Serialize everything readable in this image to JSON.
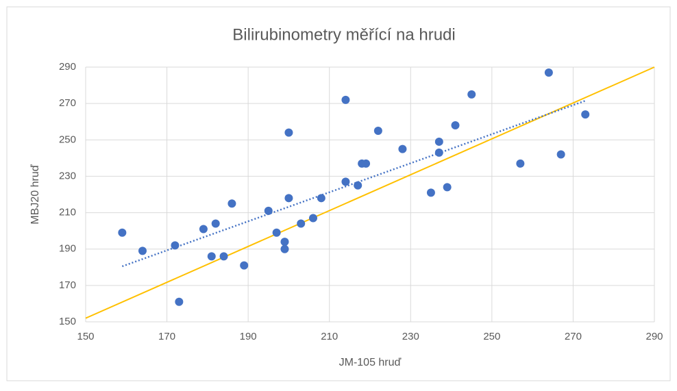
{
  "chart_data": {
    "type": "scatter",
    "title": "Bilirubinometry měřící na hrudi",
    "x_label": "JM-105 hruď",
    "y_label": "MBJ20 hruď",
    "series": [
      {
        "color": "#4472c4",
        "x": [
          159,
          164,
          172,
          173,
          179,
          182,
          181,
          184,
          186,
          189,
          195,
          197,
          199,
          199,
          200,
          200,
          203,
          206,
          208,
          214,
          214,
          217,
          218,
          219,
          222,
          228,
          235,
          237,
          237,
          239,
          241,
          245,
          257,
          264,
          267,
          273
        ],
        "values": [
          199,
          189,
          192,
          161,
          201,
          204,
          186,
          186,
          215,
          181,
          211,
          199,
          194,
          190,
          254,
          218,
          204,
          207,
          218,
          272,
          227,
          225,
          237,
          237,
          255,
          245,
          221,
          249,
          243,
          224,
          258,
          275,
          237,
          287,
          242,
          264
        ]
      }
    ],
    "trendline": {
      "color": "#4472c4",
      "x": [
        159,
        273
      ],
      "values": [
        180.5,
        271.5
      ]
    },
    "reference_line": {
      "color": "#ffc000",
      "x": [
        150,
        290
      ],
      "values": [
        152,
        290
      ]
    },
    "xlim": [
      150,
      290
    ],
    "xticks": [
      150,
      170,
      190,
      210,
      230,
      250,
      270,
      290
    ],
    "ylim": [
      150,
      290
    ],
    "yticks": [
      150,
      170,
      190,
      210,
      230,
      250,
      270,
      290
    ],
    "grid": true
  }
}
